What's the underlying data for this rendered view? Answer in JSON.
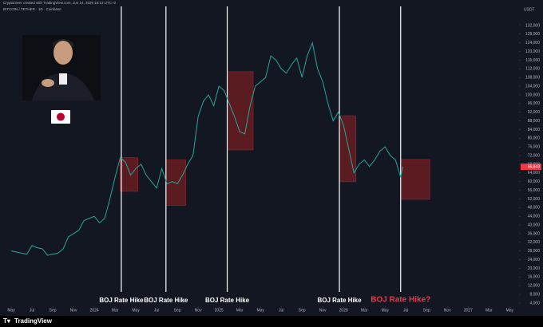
{
  "chart_data": {
    "type": "line",
    "header": "Cryptomeer created with TradingView.com, Jun 14, 2026 15:13 UTC+2",
    "symbol": "BITCOIN / TETHER · 1D · Coinbase",
    "y_unit": "USDT",
    "brand": "TradingView",
    "color": "#26a69a",
    "xlim": [
      -1.08,
      48.9
    ],
    "ylim": [
      2500,
      140800
    ],
    "xticks": [
      {
        "value": 0,
        "label": "May"
      },
      {
        "value": 2,
        "label": "Jul"
      },
      {
        "value": 4,
        "label": "Sep"
      },
      {
        "value": 6,
        "label": "Nov"
      },
      {
        "value": 8,
        "label": "2024"
      },
      {
        "value": 10,
        "label": "Mar"
      },
      {
        "value": 12,
        "label": "May"
      },
      {
        "value": 14,
        "label": "Jul"
      },
      {
        "value": 16,
        "label": "Sep"
      },
      {
        "value": 18,
        "label": "Nov"
      },
      {
        "value": 20,
        "label": "2025"
      },
      {
        "value": 22,
        "label": "Mar"
      },
      {
        "value": 24,
        "label": "May"
      },
      {
        "value": 26,
        "label": "Jul"
      },
      {
        "value": 28,
        "label": "Sep"
      },
      {
        "value": 30,
        "label": "Nov"
      },
      {
        "value": 32,
        "label": "2026"
      },
      {
        "value": 34,
        "label": "Mar"
      },
      {
        "value": 36,
        "label": "May"
      },
      {
        "value": 38,
        "label": "Jul"
      },
      {
        "value": 40,
        "label": "Sep"
      },
      {
        "value": 42,
        "label": "Nov"
      },
      {
        "value": 44,
        "label": "2027"
      },
      {
        "value": 46,
        "label": "Mar"
      },
      {
        "value": 48,
        "label": "May"
      }
    ],
    "yticks": [
      {
        "value": 4000,
        "label": "4,000"
      },
      {
        "value": 8000,
        "label": "8,000"
      },
      {
        "value": 12000,
        "label": "12,000"
      },
      {
        "value": 16000,
        "label": "16,000"
      },
      {
        "value": 20000,
        "label": "20,000"
      },
      {
        "value": 24000,
        "label": "24,000"
      },
      {
        "value": 28000,
        "label": "28,000"
      },
      {
        "value": 32000,
        "label": "32,000"
      },
      {
        "value": 36000,
        "label": "36,000"
      },
      {
        "value": 40000,
        "label": "40,000"
      },
      {
        "value": 44000,
        "label": "44,000"
      },
      {
        "value": 48000,
        "label": "48,000"
      },
      {
        "value": 52000,
        "label": "52,000"
      },
      {
        "value": 56000,
        "label": "56,000"
      },
      {
        "value": 60000,
        "label": "60,000"
      },
      {
        "value": 64000,
        "label": "64,000"
      },
      {
        "value": 68000,
        "label": "68,000"
      },
      {
        "value": 72000,
        "label": "72,000"
      },
      {
        "value": 76000,
        "label": "76,000"
      },
      {
        "value": 80000,
        "label": "80,000"
      },
      {
        "value": 84000,
        "label": "84,000"
      },
      {
        "value": 88000,
        "label": "88,000"
      },
      {
        "value": 92000,
        "label": "92,000"
      },
      {
        "value": 96000,
        "label": "96,000"
      },
      {
        "value": 100000,
        "label": "100,000"
      },
      {
        "value": 104000,
        "label": "104,000"
      },
      {
        "value": 108000,
        "label": "108,000"
      },
      {
        "value": 112000,
        "label": "112,000"
      },
      {
        "value": 116000,
        "label": "116,000"
      },
      {
        "value": 120000,
        "label": "120,000"
      },
      {
        "value": 124000,
        "label": "124,000"
      },
      {
        "value": 128000,
        "label": "128,000"
      },
      {
        "value": 132000,
        "label": "132,000"
      }
    ],
    "x": [
      0,
      0.5,
      1,
      1.5,
      2,
      2.5,
      3,
      3.5,
      4,
      4.5,
      5,
      5.5,
      6,
      6.5,
      7,
      7.5,
      8,
      8.5,
      9,
      9.5,
      10,
      10.5,
      11,
      11.5,
      12,
      12.5,
      13,
      13.5,
      14,
      14.5,
      15,
      15.5,
      16,
      16.5,
      17,
      17.5,
      18,
      18.5,
      19,
      19.5,
      20,
      20.5,
      21,
      21.5,
      22,
      22.5,
      23,
      23.5,
      24,
      24.5,
      25,
      25.5,
      26,
      26.5,
      27,
      27.5,
      28,
      28.5,
      29,
      29.5,
      30,
      30.5,
      31,
      31.5,
      32,
      32.5,
      33,
      33.5,
      34,
      34.5,
      35,
      35.5,
      36,
      36.5,
      37,
      37.5,
      37.7
    ],
    "values": [
      28000,
      27500,
      27000,
      26500,
      30500,
      29500,
      29000,
      26000,
      26500,
      27000,
      29000,
      34500,
      36000,
      37500,
      42000,
      43000,
      44000,
      41000,
      43000,
      52000,
      62000,
      71000,
      69000,
      63000,
      66000,
      68000,
      63000,
      60000,
      57000,
      66000,
      59000,
      60000,
      59000,
      63000,
      68000,
      72000,
      90000,
      97000,
      100000,
      95000,
      104000,
      102000,
      96000,
      90000,
      83000,
      82000,
      95000,
      104000,
      106000,
      108000,
      118000,
      116000,
      112000,
      110000,
      114000,
      117000,
      108000,
      118000,
      124000,
      112000,
      106000,
      96000,
      88000,
      92000,
      86000,
      75000,
      64000,
      68000,
      70000,
      67000,
      70000,
      74000,
      76000,
      72000,
      70000,
      62000,
      66843
    ],
    "last_price": {
      "value": 66843,
      "label": "66,843"
    },
    "events": [
      {
        "x": 10.6,
        "label": "BOJ Rate Hike",
        "color": "#ffffff"
      },
      {
        "x": 14.9,
        "label": "BOJ Rate Hike",
        "color": "#ffffff"
      },
      {
        "x": 20.8,
        "label": "BOJ Rate Hike",
        "color": "#ffffff"
      },
      {
        "x": 31.6,
        "label": "BOJ Rate Hike",
        "color": "#ffffff"
      },
      {
        "x": 37.5,
        "label": "BOJ Rate Hike?",
        "color": "#f23645"
      }
    ],
    "ranges": [
      {
        "x0": 10.5,
        "x1": 12.2,
        "top": 71000,
        "bottom": 55500
      },
      {
        "x0": 14.9,
        "x1": 16.8,
        "top": 70000,
        "bottom": 49000
      },
      {
        "x0": 20.8,
        "x1": 23.3,
        "top": 110700,
        "bottom": 74600
      },
      {
        "x0": 31.6,
        "x1": 33.2,
        "top": 90400,
        "bottom": 59900
      },
      {
        "x0": 37.6,
        "x1": 40.3,
        "top": 70200,
        "bottom": 51800
      }
    ]
  }
}
